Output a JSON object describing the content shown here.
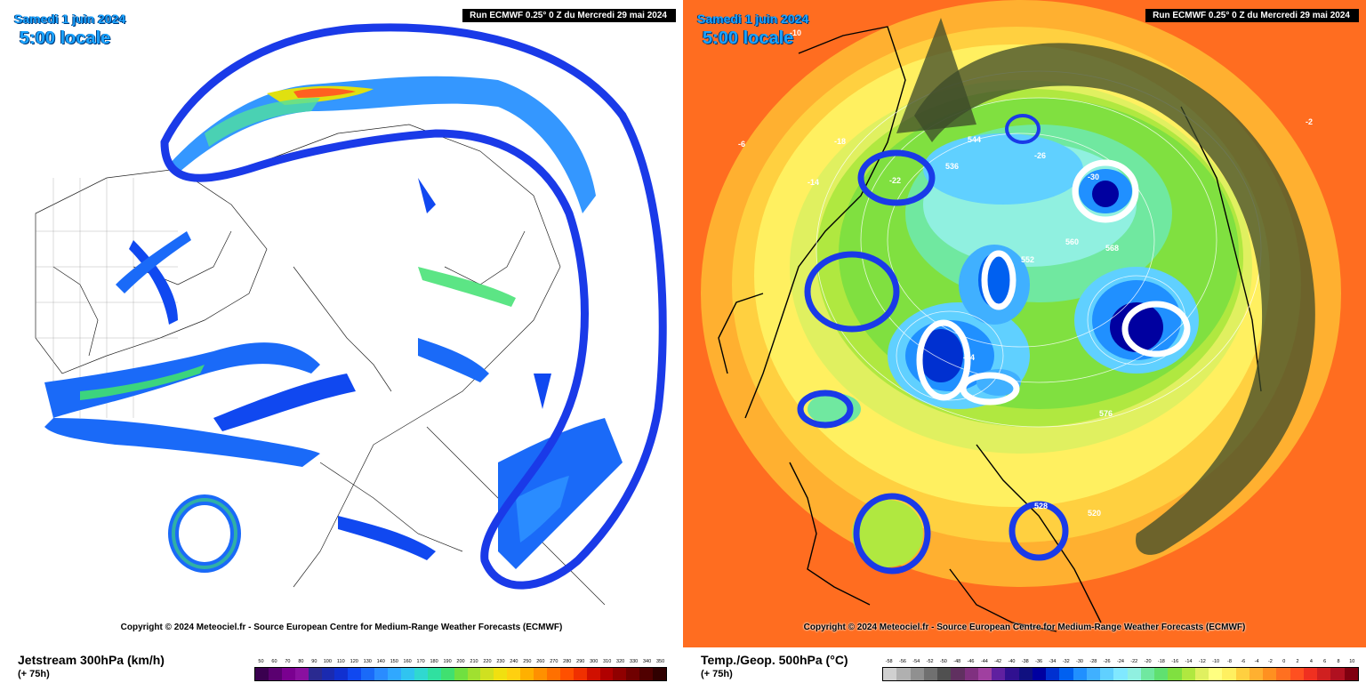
{
  "left_panel": {
    "title": "Samedi 1 juin 2024",
    "subtitle": "5:00 locale",
    "run_info": "Run ECMWF 0.25° 0 Z du Mercredi 29 mai 2024",
    "copyright": "Copyright © 2024 Meteociel.fr - Source European Centre for Medium-Range Weather Forecasts (ECMWF)",
    "footer_title": "Jetstream 300hPa (km/h)",
    "footer_sub": "(+ 75h)",
    "scale_labels": [
      "50",
      "60",
      "70",
      "80",
      "90",
      "100",
      "110",
      "120",
      "130",
      "140",
      "150",
      "160",
      "170",
      "180",
      "190",
      "200",
      "210",
      "220",
      "230",
      "240",
      "250",
      "260",
      "270",
      "280",
      "290",
      "300",
      "310",
      "320",
      "330",
      "340",
      "350"
    ],
    "scale_colors": [
      "#3a0050",
      "#5a0070",
      "#7a0090",
      "#8a10a0",
      "#2a2a90",
      "#1a2ab0",
      "#1030d0",
      "#1048f0",
      "#1a6af8",
      "#2a8cff",
      "#30a8ff",
      "#30c4f0",
      "#30d8d0",
      "#30e0a0",
      "#40e070",
      "#70e040",
      "#a0e030",
      "#d0e020",
      "#f0e010",
      "#ffd010",
      "#ffb000",
      "#ff9000",
      "#ff7000",
      "#ff5000",
      "#f03000",
      "#d01000",
      "#b00000",
      "#900000",
      "#700000",
      "#500000",
      "#300000"
    ]
  },
  "right_panel": {
    "title": "Samedi 1 juin 2024",
    "subtitle": "5:00 locale",
    "run_info": "Run ECMWF 0.25° 0 Z du Mercredi 29 mai 2024",
    "copyright": "Copyright © 2024 Meteociel.fr - Source European Centre for Medium-Range Weather Forecasts (ECMWF)",
    "footer_title": "Temp./Geop. 500hPa (°C)",
    "footer_sub": "(+ 75h)",
    "scale_labels": [
      "-58",
      "-56",
      "-54",
      "-52",
      "-50",
      "-48",
      "-46",
      "-44",
      "-42",
      "-40",
      "-38",
      "-36",
      "-34",
      "-32",
      "-30",
      "-28",
      "-26",
      "-24",
      "-22",
      "-20",
      "-18",
      "-16",
      "-14",
      "-12",
      "-10",
      "-8",
      "-6",
      "-4",
      "-2",
      "0",
      "2",
      "4",
      "6",
      "8",
      "10"
    ],
    "scale_colors": [
      "#d0d0d0",
      "#b0b0b0",
      "#909090",
      "#707070",
      "#505050",
      "#603060",
      "#803080",
      "#a040a0",
      "#6020a0",
      "#301090",
      "#101080",
      "#0000a0",
      "#0030d0",
      "#0060f0",
      "#2090ff",
      "#40b0ff",
      "#60d0ff",
      "#80e8ff",
      "#90f0e0",
      "#70e8a0",
      "#60e070",
      "#80e040",
      "#b0e840",
      "#e0f060",
      "#ffff80",
      "#fff060",
      "#ffd040",
      "#ffb030",
      "#ff9020",
      "#ff7020",
      "#ff5020",
      "#f03020",
      "#d02020",
      "#b01020",
      "#800010"
    ],
    "geopotential_labels": [
      "536",
      "544",
      "552",
      "560",
      "568",
      "576",
      "528",
      "520"
    ],
    "temperature_labels": [
      "-10",
      "-18",
      "-22",
      "-26",
      "-30",
      "-34",
      "-14",
      "-6",
      "-2"
    ]
  },
  "colors": {
    "highlight_blue": "#1a3ae8",
    "highlight_white": "#ffffff",
    "arrow_dark": "#3c4a2a"
  }
}
